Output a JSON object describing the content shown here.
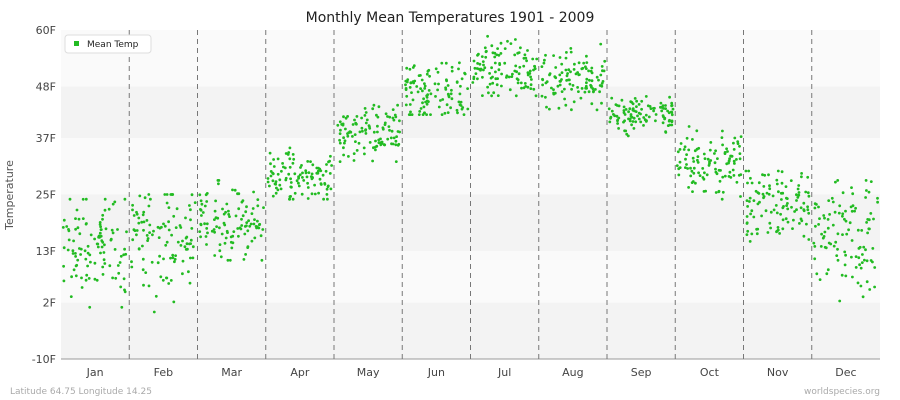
{
  "chart_data": {
    "type": "scatter",
    "title": "Monthly Mean Temperatures 1901 - 2009",
    "ylabel": "Temperature",
    "xlabel": "",
    "ylim": [
      -10,
      60
    ],
    "ytick_values": [
      -10,
      2,
      13,
      25,
      37,
      48,
      60
    ],
    "ytick_labels": [
      "-10F",
      "2F",
      "13F",
      "25F",
      "37F",
      "48F",
      "60F"
    ],
    "categories": [
      "Jan",
      "Feb",
      "Mar",
      "Apr",
      "May",
      "Jun",
      "Jul",
      "Aug",
      "Sep",
      "Oct",
      "Nov",
      "Dec"
    ],
    "grid": "horizontal bands, dashed month separators",
    "legend": {
      "position": "top-left",
      "entries": [
        "Mean Temp"
      ]
    },
    "series": [
      {
        "name": "Mean Temp",
        "color": "#22bb22",
        "monthly_summary": [
          {
            "month": "Jan",
            "min": 1,
            "max": 24,
            "mean": 14
          },
          {
            "month": "Feb",
            "min": 0,
            "max": 25,
            "mean": 15
          },
          {
            "month": "Mar",
            "min": 11,
            "max": 28,
            "mean": 19
          },
          {
            "month": "Apr",
            "min": 24,
            "max": 35,
            "mean": 29
          },
          {
            "month": "May",
            "min": 32,
            "max": 44,
            "mean": 38
          },
          {
            "month": "Jun",
            "min": 42,
            "max": 55,
            "mean": 47
          },
          {
            "month": "Jul",
            "min": 46,
            "max": 59,
            "mean": 52
          },
          {
            "month": "Aug",
            "min": 43,
            "max": 57,
            "mean": 49
          },
          {
            "month": "Sep",
            "min": 37,
            "max": 46,
            "mean": 42
          },
          {
            "month": "Oct",
            "min": 24,
            "max": 40,
            "mean": 32
          },
          {
            "month": "Nov",
            "min": 13,
            "max": 30,
            "mean": 23
          },
          {
            "month": "Dec",
            "min": -1,
            "max": 28,
            "mean": 17
          }
        ],
        "points_per_month": 109
      }
    ],
    "footer_left": "Latitude 64.75 Longitude 14.25",
    "footer_right": "worldspecies.org"
  }
}
